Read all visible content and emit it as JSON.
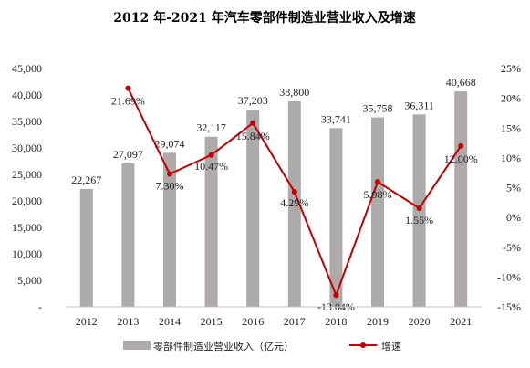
{
  "chart_data": {
    "type": "bar",
    "title": "2012 年-2021 年汽车零部件制造业营业收入及增速",
    "categories": [
      "2012",
      "2013",
      "2014",
      "2015",
      "2016",
      "2017",
      "2018",
      "2019",
      "2020",
      "2021"
    ],
    "series": [
      {
        "name": "零部件制造业营业收入（亿元）",
        "type": "bar",
        "axis": "left",
        "color": "#aeaaaa",
        "values": [
          22267,
          27097,
          29074,
          32117,
          37203,
          38800,
          33741,
          35758,
          36311,
          40668
        ],
        "labels": [
          "22,267",
          "27,097",
          "29,074",
          "32,117",
          "37,203",
          "38,800",
          "33,741",
          "35,758",
          "36,311",
          "40,668"
        ]
      },
      {
        "name": "增速",
        "type": "line",
        "axis": "right",
        "color": "#c00000",
        "values": [
          null,
          21.69,
          7.3,
          10.47,
          15.84,
          4.29,
          -13.04,
          5.98,
          1.55,
          12.0
        ],
        "labels": [
          "",
          "21.69%",
          "7.30%",
          "10.47%",
          "15.84%",
          "4.29%",
          "-13.04%",
          "5.98%",
          "1.55%",
          "12.00%"
        ]
      }
    ],
    "y_left": {
      "range": [
        0,
        45000
      ],
      "ticks": [
        0,
        5000,
        10000,
        15000,
        20000,
        25000,
        30000,
        35000,
        40000,
        45000
      ],
      "tick_labels": [
        "-",
        "5,000",
        "10,000",
        "15,000",
        "20,000",
        "25,000",
        "30,000",
        "35,000",
        "40,000",
        "45,000"
      ]
    },
    "y_right": {
      "range": [
        -15,
        25
      ],
      "ticks": [
        -15,
        -10,
        -5,
        0,
        5,
        10,
        15,
        20,
        25
      ],
      "tick_labels": [
        "-15%",
        "-10%",
        "-5%",
        "0%",
        "5%",
        "10%",
        "15%",
        "20%",
        "25%"
      ]
    },
    "grid": false,
    "legend_position": "bottom"
  }
}
